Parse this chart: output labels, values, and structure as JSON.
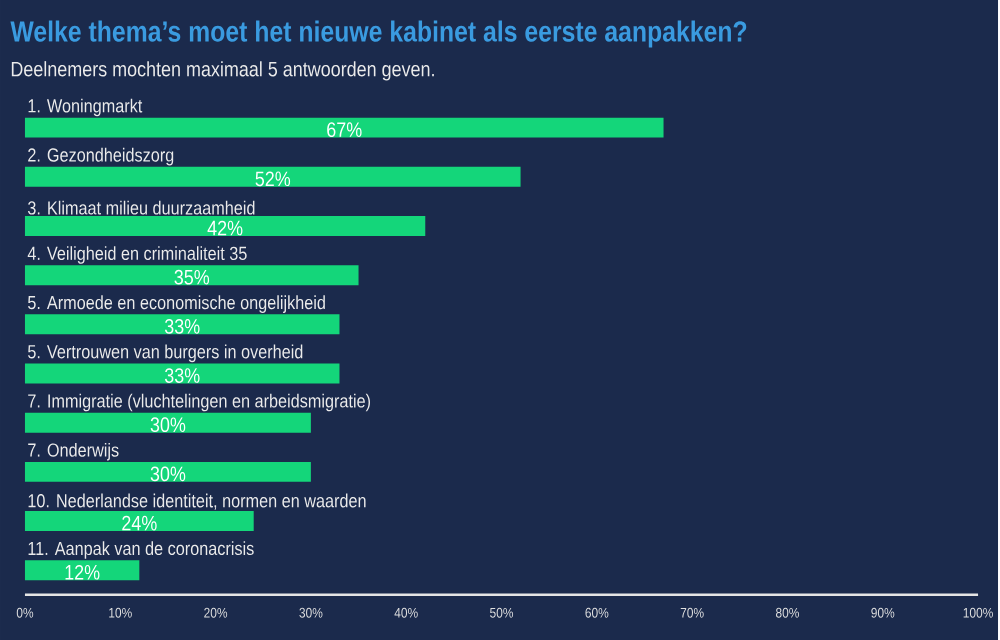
{
  "chart_data": {
    "type": "bar",
    "orientation": "horizontal",
    "title": "Welke thema’s moet het nieuwe kabinet als eerste aanpakken?",
    "subtitle": "Deelnemers mochten maximaal 5 antwoorden geven.",
    "categories": [
      "1. Woningmarkt",
      "2. Gezondheidszorg",
      "3. Klimaat milieu duurzaamheid",
      "4. Veiligheid en criminaliteit 35",
      "5. Armoede en economische ongelijkheid",
      "5. Vertrouwen van burgers in overheid",
      "7. Immigratie (vluchtelingen en arbeidsmigratie)",
      "7. Onderwijs",
      "10. Nederlandse identiteit, normen en waarden",
      "11. Aanpak van de coronacrisis"
    ],
    "values": [
      67,
      52,
      42,
      35,
      33,
      33,
      30,
      30,
      24,
      12
    ],
    "value_labels": [
      "67%",
      "52%",
      "42%",
      "35%",
      "33%",
      "33%",
      "30%",
      "30%",
      "24%",
      "12%"
    ],
    "color": "#14d67a",
    "xlim": [
      0,
      100
    ],
    "xticks": [
      {
        "value": 0,
        "label": "0%"
      },
      {
        "value": 10,
        "label": "10%"
      },
      {
        "value": 20,
        "label": "20%"
      },
      {
        "value": 30,
        "label": "30%"
      },
      {
        "value": 40,
        "label": "40%"
      },
      {
        "value": 50,
        "label": "50%"
      },
      {
        "value": 60,
        "label": "60%"
      },
      {
        "value": 70,
        "label": "70%"
      },
      {
        "value": 80,
        "label": "80%"
      },
      {
        "value": 90,
        "label": "90%"
      },
      {
        "value": 100,
        "label": "100%"
      }
    ]
  }
}
